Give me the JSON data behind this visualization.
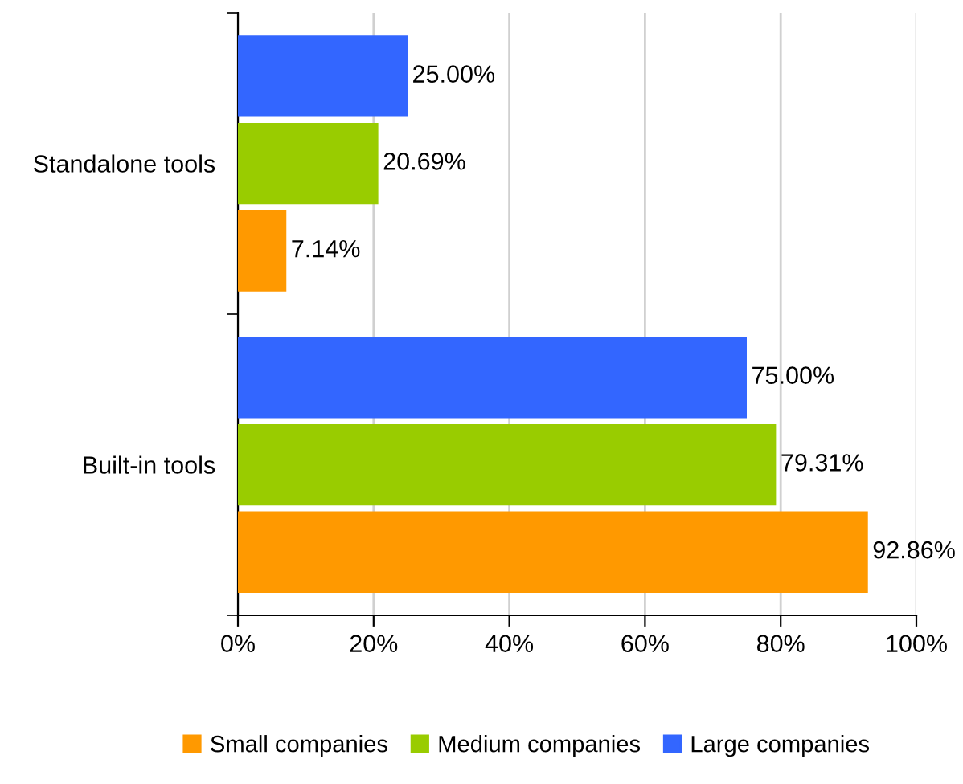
{
  "chart_data": {
    "type": "bar",
    "orientation": "horizontal",
    "categories": [
      "Standalone tools",
      "Built-in tools"
    ],
    "series": [
      {
        "name": "Small companies",
        "color": "#ff9900",
        "values": [
          7.14,
          92.86
        ],
        "value_labels": [
          "7.14%",
          "92.86%"
        ]
      },
      {
        "name": "Medium companies",
        "color": "#99cc00",
        "values": [
          20.69,
          79.31
        ],
        "value_labels": [
          "20.69%",
          "79.31%"
        ]
      },
      {
        "name": "Large companies",
        "color": "#3366ff",
        "values": [
          25.0,
          75.0
        ],
        "value_labels": [
          "25.00%",
          "75.00%"
        ]
      }
    ],
    "xlim": [
      0,
      100
    ],
    "xticks": [
      {
        "value": 0,
        "label": "0%"
      },
      {
        "value": 20,
        "label": "20%"
      },
      {
        "value": 40,
        "label": "40%"
      },
      {
        "value": 60,
        "label": "60%"
      },
      {
        "value": 80,
        "label": "80%"
      },
      {
        "value": 100,
        "label": "100%"
      }
    ],
    "grid": "x",
    "legend": "bottom"
  }
}
